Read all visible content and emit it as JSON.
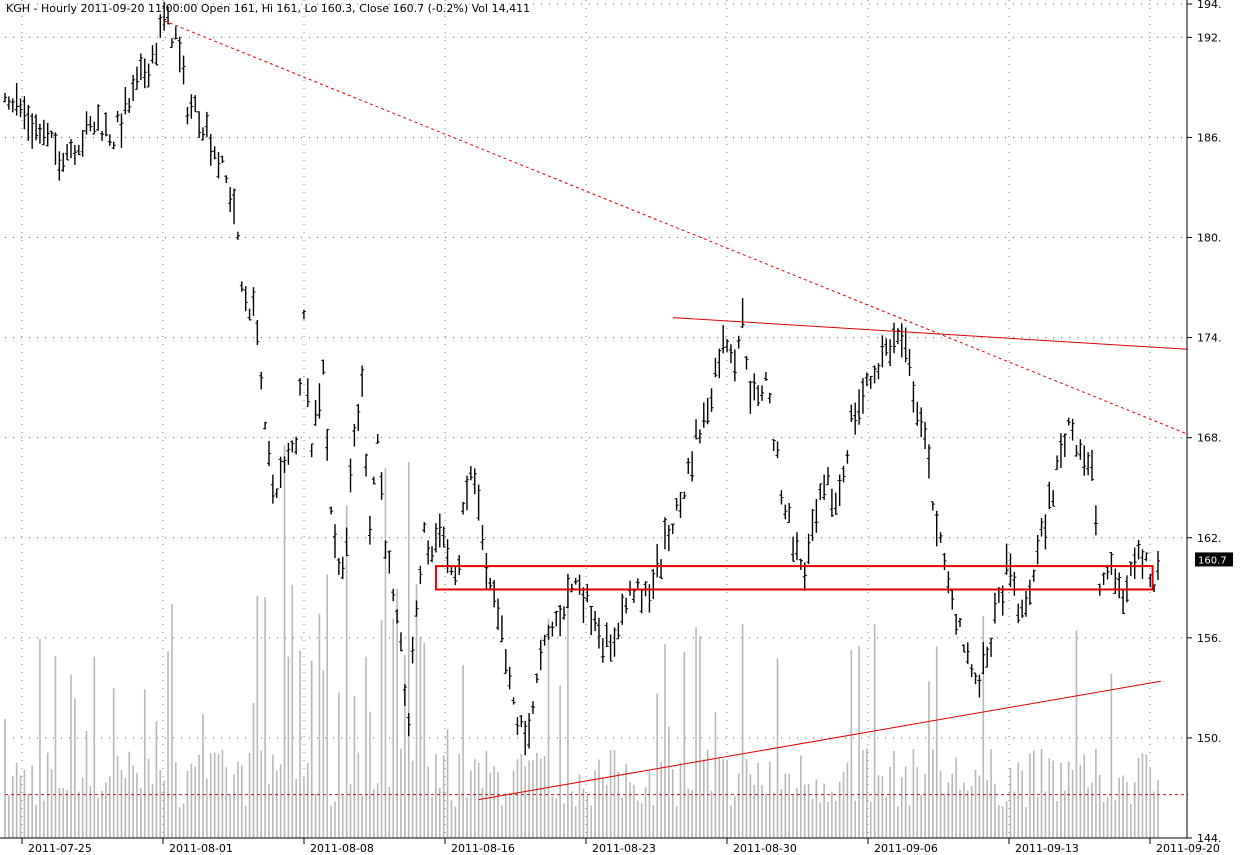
{
  "chart_data": {
    "type": "bar",
    "title": "KGH - Hourly 2011-09-20 11:00:00 Open 161, Hi 161, Lo 160.3, Close 160.7 (-0.2%) Vol 14,411",
    "price_axis": {
      "min": 144,
      "max": 194,
      "ticks": [
        "194.",
        "192.",
        "186.",
        "180.",
        "174.",
        "168.",
        "162.",
        "156.",
        "150.",
        "144."
      ],
      "tick_values": [
        194,
        192,
        186,
        180,
        174,
        168,
        162,
        156,
        150,
        144
      ]
    },
    "date_labels": [
      "2011-07-25",
      "2011-08-01",
      "2011-08-08",
      "2011-08-16",
      "2011-08-23",
      "2011-08-30",
      "2011-09-06",
      "2011-09-13",
      "2011-09-20"
    ],
    "last_price": "160.7",
    "colors": {
      "price": "#000000",
      "volume": "#b8b8b8",
      "trendline": "#e00000",
      "grid": "#000000",
      "last_box": "#000000"
    },
    "price_path": [
      [
        0,
        189
      ],
      [
        3,
        188
      ],
      [
        8,
        186.5
      ],
      [
        14,
        185
      ],
      [
        20,
        186
      ],
      [
        24,
        187
      ],
      [
        28,
        186
      ],
      [
        32,
        188
      ],
      [
        36,
        190
      ],
      [
        39,
        191.5
      ],
      [
        41,
        193
      ],
      [
        44,
        192
      ],
      [
        47,
        188
      ],
      [
        50,
        187.5
      ],
      [
        53,
        186
      ],
      [
        56,
        184
      ],
      [
        59,
        182
      ],
      [
        61,
        177
      ],
      [
        63,
        176
      ],
      [
        65,
        175
      ],
      [
        67,
        168
      ],
      [
        69,
        165
      ],
      [
        72,
        166
      ],
      [
        75,
        168
      ],
      [
        77,
        175
      ],
      [
        79,
        168
      ],
      [
        82,
        172
      ],
      [
        84,
        164
      ],
      [
        86,
        160
      ],
      [
        88,
        162
      ],
      [
        90,
        168
      ],
      [
        92,
        171
      ],
      [
        94,
        163
      ],
      [
        96,
        168
      ],
      [
        98,
        162
      ],
      [
        100,
        158
      ],
      [
        102,
        155
      ],
      [
        104,
        151
      ],
      [
        106,
        158
      ],
      [
        108,
        162
      ],
      [
        110,
        161
      ],
      [
        112,
        163
      ],
      [
        114,
        161
      ],
      [
        116,
        159
      ],
      [
        118,
        163
      ],
      [
        120,
        166
      ],
      [
        122,
        164
      ],
      [
        124,
        159.5
      ],
      [
        126,
        158
      ],
      [
        128,
        156
      ],
      [
        130,
        153
      ],
      [
        132,
        151
      ],
      [
        134,
        150
      ],
      [
        136,
        152
      ],
      [
        138,
        154.5
      ],
      [
        140,
        156
      ],
      [
        142,
        157
      ],
      [
        144,
        158
      ],
      [
        146,
        159
      ],
      [
        148,
        159.5
      ],
      [
        150,
        158
      ],
      [
        152,
        157.5
      ],
      [
        154,
        156
      ],
      [
        156,
        155
      ],
      [
        158,
        157
      ],
      [
        160,
        158
      ],
      [
        162,
        159
      ],
      [
        164,
        158
      ],
      [
        166,
        159
      ],
      [
        168,
        160
      ],
      [
        170,
        161.5
      ],
      [
        172,
        163
      ],
      [
        174,
        164
      ],
      [
        176,
        166
      ],
      [
        178,
        168
      ],
      [
        180,
        169
      ],
      [
        182,
        171
      ],
      [
        184,
        173
      ],
      [
        186,
        174
      ],
      [
        188,
        173
      ],
      [
        190,
        175
      ],
      [
        192,
        171
      ],
      [
        194,
        170
      ],
      [
        196,
        172
      ],
      [
        198,
        168
      ],
      [
        200,
        165
      ],
      [
        202,
        163
      ],
      [
        204,
        161
      ],
      [
        206,
        160
      ],
      [
        208,
        162
      ],
      [
        210,
        164
      ],
      [
        212,
        165
      ],
      [
        214,
        164
      ],
      [
        216,
        166
      ],
      [
        218,
        169
      ],
      [
        220,
        170
      ],
      [
        222,
        171
      ],
      [
        224,
        172
      ],
      [
        226,
        173
      ],
      [
        228,
        173.5
      ],
      [
        230,
        174
      ],
      [
        232,
        173
      ],
      [
        234,
        171
      ],
      [
        236,
        169
      ],
      [
        238,
        166
      ],
      [
        240,
        163
      ],
      [
        242,
        160
      ],
      [
        244,
        158
      ],
      [
        246,
        157
      ],
      [
        248,
        155
      ],
      [
        250,
        153
      ],
      [
        252,
        154
      ],
      [
        254,
        156
      ],
      [
        256,
        158
      ],
      [
        258,
        160
      ],
      [
        260,
        159
      ],
      [
        262,
        157
      ],
      [
        264,
        159
      ],
      [
        266,
        161
      ],
      [
        268,
        163
      ],
      [
        270,
        165
      ],
      [
        272,
        167
      ],
      [
        274,
        169
      ],
      [
        276,
        168
      ],
      [
        278,
        167
      ],
      [
        280,
        166
      ],
      [
        282,
        159
      ],
      [
        284,
        160
      ],
      [
        286,
        159.5
      ],
      [
        288,
        158.5
      ],
      [
        290,
        160
      ],
      [
        292,
        161
      ],
      [
        294,
        160.5
      ],
      [
        296,
        159.5
      ],
      [
        297,
        160.7
      ]
    ],
    "trendlines": [
      {
        "style": "dashed",
        "from": [
          41,
          193
        ],
        "to": [
          297,
          168.2
        ]
      },
      {
        "style": "solid",
        "from": [
          172,
          175.2
        ],
        "to": [
          297,
          173.3
        ]
      },
      {
        "style": "solid",
        "from": [
          122,
          146.3
        ],
        "to": [
          290,
          153.4
        ]
      },
      {
        "style": "dashed",
        "from": [
          0,
          146.6
        ],
        "to": [
          297,
          146.6
        ]
      }
    ],
    "support_zone": {
      "from_x": 111,
      "to_x": 292,
      "top": 160.3,
      "bottom": 158.9
    },
    "volume_bars": 298
  }
}
